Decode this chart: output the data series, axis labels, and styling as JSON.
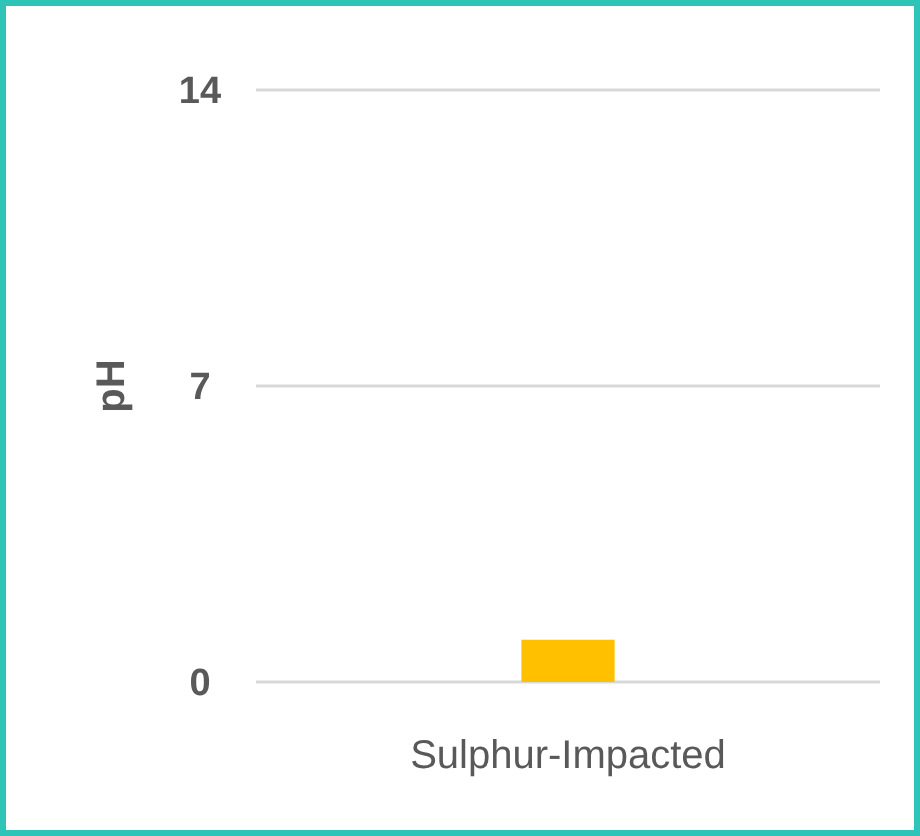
{
  "chart_data": {
    "type": "bar",
    "ylabel": "pH",
    "categories": [
      "Sulphur-Impacted"
    ],
    "values": [
      1
    ],
    "color": "#ffc000",
    "ylim": [
      0,
      14
    ],
    "yticks": [
      0,
      7,
      14
    ],
    "grid": "y"
  }
}
